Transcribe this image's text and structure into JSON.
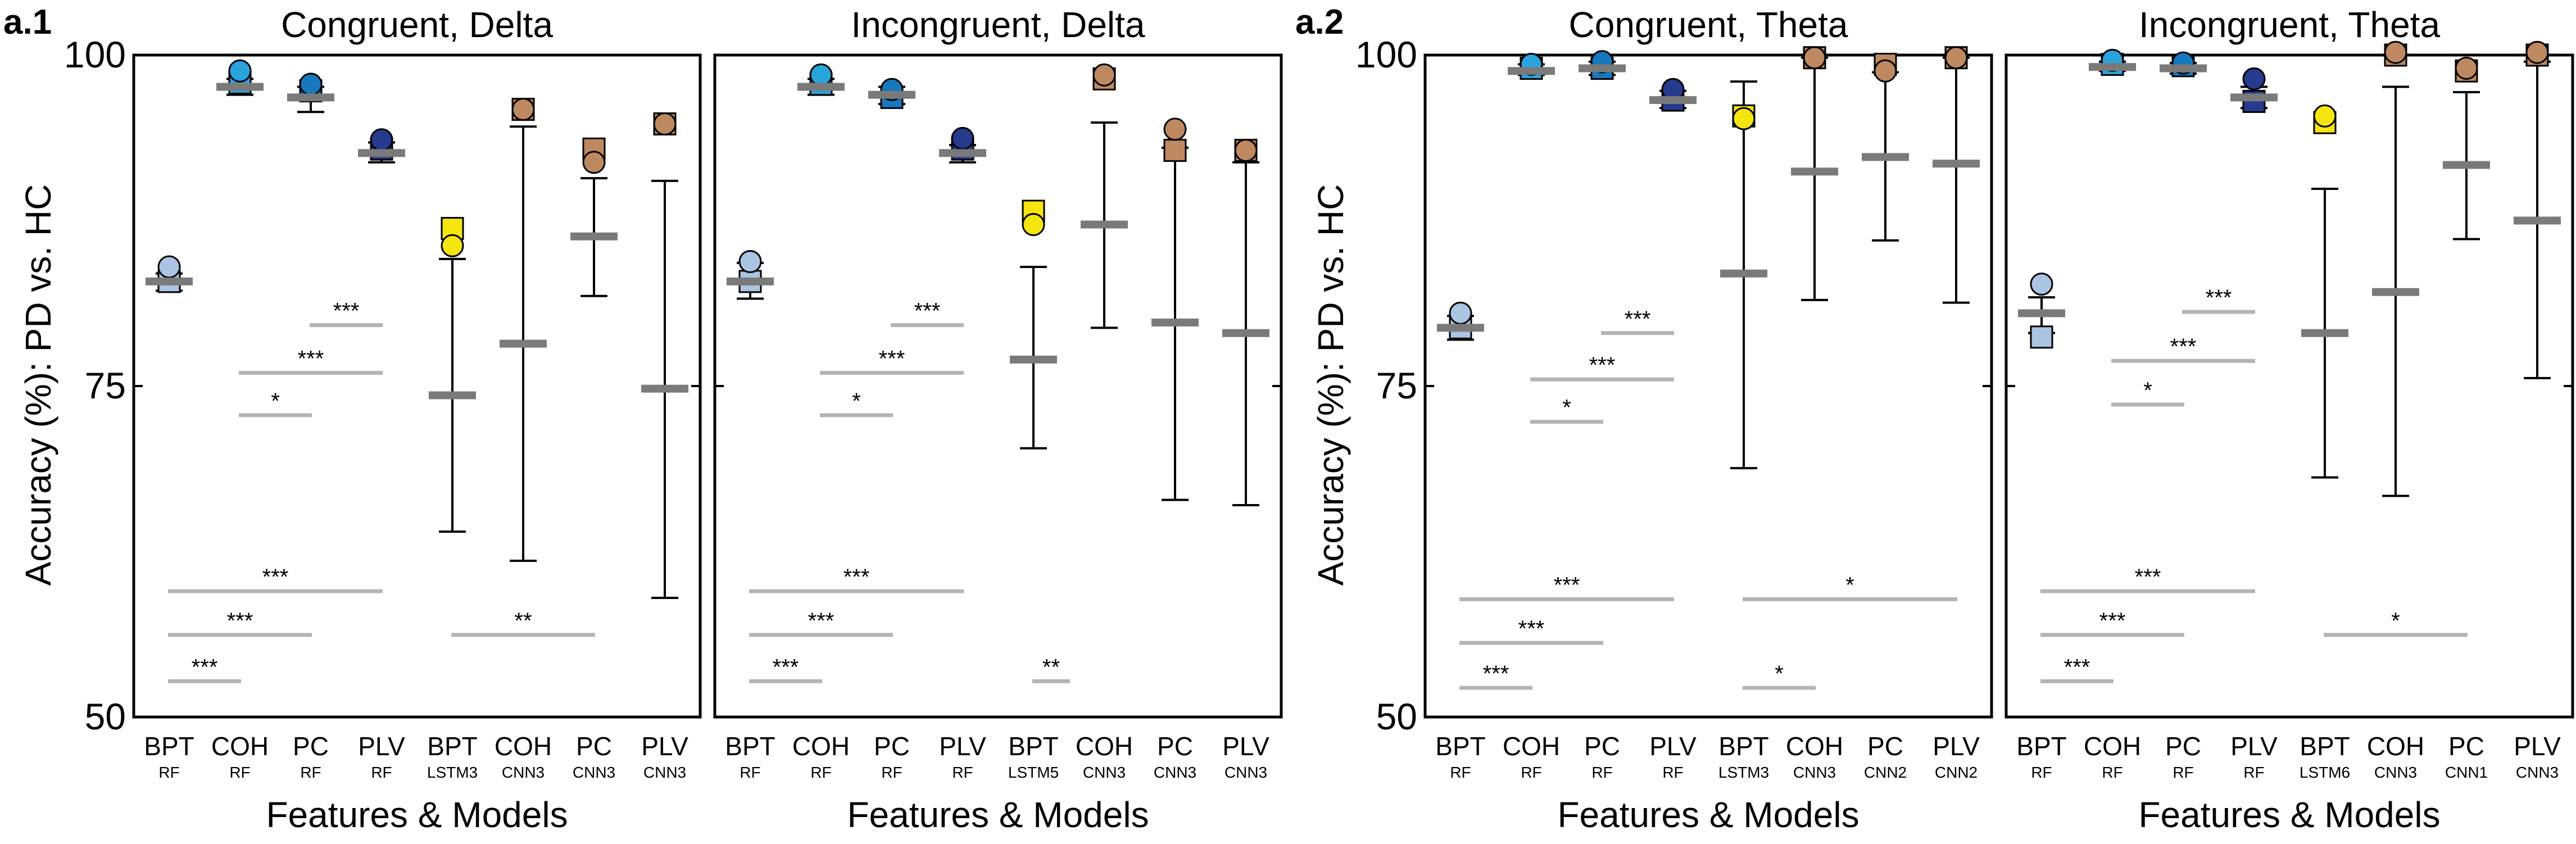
{
  "figure": {
    "section_labels": [
      "a.1",
      "a.2"
    ],
    "ylabel": "Accuracy (%): PD vs. HC",
    "xlabel": "Features & Models"
  },
  "colors": {
    "BPT": "#aac4e2",
    "COH": "#29a3dc",
    "PC": "#1678bd",
    "PLV": "#263a8e",
    "LSTM": "#f5e50f",
    "CNN": "#be8961",
    "CNN_dark": "#8a5a36",
    "mean_bar": "#7a7a7a",
    "sig_line": "#b4b4b4",
    "frame": "#000000"
  },
  "chart_data": [
    {
      "type": "scatter",
      "title": "Congruent, Delta",
      "xlabel": "Features & Models",
      "ylabel": "Accuracy (%): PD vs. HC",
      "ylim": [
        50,
        100
      ],
      "yticks": [
        50,
        75,
        100
      ],
      "categories": [
        {
          "feature": "BPT",
          "model": "RF"
        },
        {
          "feature": "COH",
          "model": "RF"
        },
        {
          "feature": "PC",
          "model": "RF"
        },
        {
          "feature": "PLV",
          "model": "RF"
        },
        {
          "feature": "BPT",
          "model": "LSTM3"
        },
        {
          "feature": "COH",
          "model": "CNN3"
        },
        {
          "feature": "PC",
          "model": "CNN3"
        },
        {
          "feature": "PLV",
          "model": "CNN3"
        }
      ],
      "series": [
        {
          "name": "mean",
          "values": [
            82.9,
            97.6,
            96.8,
            92.6,
            74.3,
            78.2,
            86.3,
            74.8
          ]
        },
        {
          "name": "error_low",
          "values": [
            82.2,
            97.0,
            95.7,
            91.9,
            64.0,
            61.8,
            81.8,
            59.0
          ]
        },
        {
          "name": "error_high",
          "values": [
            83.5,
            98.2,
            97.6,
            93.4,
            84.6,
            94.6,
            90.7,
            90.5
          ]
        },
        {
          "name": "circle",
          "values": [
            84.0,
            98.8,
            97.8,
            93.6,
            85.6,
            95.9,
            91.9,
            94.8
          ]
        },
        {
          "name": "square",
          "values": [
            82.9,
            97.9,
            97.3,
            92.9,
            86.9,
            95.9,
            92.9,
            94.8
          ]
        }
      ],
      "significance": [
        {
          "from": 2,
          "to": 3,
          "label": "***",
          "y": 79.6
        },
        {
          "from": 1,
          "to": 3,
          "label": "***",
          "y": 76.0
        },
        {
          "from": 1,
          "to": 2,
          "label": "*",
          "y": 72.8
        },
        {
          "from": 0,
          "to": 3,
          "label": "***",
          "y": 59.5
        },
        {
          "from": 0,
          "to": 2,
          "label": "***",
          "y": 56.2
        },
        {
          "from": 0,
          "to": 1,
          "label": "***",
          "y": 52.7
        },
        {
          "from": 4,
          "to": 6,
          "label": "**",
          "y": 56.2
        }
      ]
    },
    {
      "type": "scatter",
      "title": "Incongruent, Delta",
      "xlabel": "Features & Models",
      "ylabel": "Accuracy (%): PD vs. HC",
      "ylim": [
        50,
        100
      ],
      "yticks": [
        50,
        75,
        100
      ],
      "categories": [
        {
          "feature": "BPT",
          "model": "RF"
        },
        {
          "feature": "COH",
          "model": "RF"
        },
        {
          "feature": "PC",
          "model": "RF"
        },
        {
          "feature": "PLV",
          "model": "RF"
        },
        {
          "feature": "BPT",
          "model": "LSTM5"
        },
        {
          "feature": "COH",
          "model": "CNN3"
        },
        {
          "feature": "PC",
          "model": "CNN3"
        },
        {
          "feature": "PLV",
          "model": "CNN3"
        }
      ],
      "series": [
        {
          "name": "mean",
          "values": [
            82.9,
            97.6,
            97.0,
            92.6,
            77.0,
            87.2,
            79.8,
            79.0
          ]
        },
        {
          "name": "error_low",
          "values": [
            81.6,
            97.0,
            96.3,
            91.9,
            70.3,
            79.4,
            66.4,
            66.0
          ]
        },
        {
          "name": "error_high",
          "values": [
            84.3,
            98.2,
            97.6,
            93.2,
            84.0,
            94.9,
            93.0,
            91.9
          ]
        },
        {
          "name": "circle",
          "values": [
            84.4,
            98.5,
            97.4,
            93.7,
            87.2,
            98.5,
            94.4,
            92.8
          ]
        },
        {
          "name": "square",
          "values": [
            82.9,
            97.8,
            96.8,
            92.9,
            88.2,
            98.2,
            92.8,
            92.8
          ]
        }
      ],
      "significance": [
        {
          "from": 2,
          "to": 3,
          "label": "***",
          "y": 79.6
        },
        {
          "from": 1,
          "to": 3,
          "label": "***",
          "y": 76.0
        },
        {
          "from": 1,
          "to": 2,
          "label": "*",
          "y": 72.8
        },
        {
          "from": 0,
          "to": 3,
          "label": "***",
          "y": 59.5
        },
        {
          "from": 0,
          "to": 2,
          "label": "***",
          "y": 56.2
        },
        {
          "from": 0,
          "to": 1,
          "label": "***",
          "y": 52.7
        },
        {
          "from": 4,
          "to": 4.5,
          "label": "**",
          "y": 52.7
        }
      ]
    },
    {
      "type": "scatter",
      "title": "Congruent, Theta",
      "xlabel": "Features & Models",
      "ylabel": "Accuracy (%): PD vs. HC",
      "ylim": [
        50,
        100
      ],
      "yticks": [
        50,
        75,
        100
      ],
      "categories": [
        {
          "feature": "BPT",
          "model": "RF"
        },
        {
          "feature": "COH",
          "model": "RF"
        },
        {
          "feature": "PC",
          "model": "RF"
        },
        {
          "feature": "PLV",
          "model": "RF"
        },
        {
          "feature": "BPT",
          "model": "LSTM3"
        },
        {
          "feature": "COH",
          "model": "CNN3"
        },
        {
          "feature": "PC",
          "model": "CNN2"
        },
        {
          "feature": "PLV",
          "model": "CNN2"
        }
      ],
      "series": [
        {
          "name": "mean",
          "values": [
            79.4,
            98.8,
            99.0,
            96.6,
            83.5,
            91.2,
            92.3,
            91.8
          ]
        },
        {
          "name": "error_low",
          "values": [
            78.5,
            98.5,
            98.5,
            96.0,
            68.8,
            81.5,
            86.0,
            81.3
          ]
        },
        {
          "name": "error_high",
          "values": [
            80.3,
            99.3,
            99.5,
            97.3,
            98.0,
            99.8,
            98.7,
            99.8
          ]
        },
        {
          "name": "circle",
          "values": [
            80.5,
            99.3,
            99.5,
            97.4,
            95.2,
            99.8,
            98.8,
            99.8
          ]
        },
        {
          "name": "square",
          "values": [
            79.4,
            99.0,
            99.0,
            96.6,
            95.4,
            99.8,
            99.3,
            99.8
          ]
        }
      ],
      "significance": [
        {
          "from": 2,
          "to": 3,
          "label": "***",
          "y": 79.0
        },
        {
          "from": 1,
          "to": 3,
          "label": "***",
          "y": 75.5
        },
        {
          "from": 1,
          "to": 2,
          "label": "*",
          "y": 72.3
        },
        {
          "from": 0,
          "to": 3,
          "label": "***",
          "y": 58.9
        },
        {
          "from": 0,
          "to": 2,
          "label": "***",
          "y": 55.6
        },
        {
          "from": 0,
          "to": 1,
          "label": "***",
          "y": 52.2
        },
        {
          "from": 4,
          "to": 7,
          "label": "*",
          "y": 58.9
        },
        {
          "from": 4,
          "to": 5,
          "label": "*",
          "y": 52.2
        }
      ]
    },
    {
      "type": "scatter",
      "title": "Incongruent, Theta",
      "xlabel": "Features & Models",
      "ylabel": "Accuracy (%): PD vs. HC",
      "ylim": [
        50,
        100
      ],
      "yticks": [
        50,
        75,
        100
      ],
      "categories": [
        {
          "feature": "BPT",
          "model": "RF"
        },
        {
          "feature": "COH",
          "model": "RF"
        },
        {
          "feature": "PC",
          "model": "RF"
        },
        {
          "feature": "PLV",
          "model": "RF"
        },
        {
          "feature": "BPT",
          "model": "LSTM6"
        },
        {
          "feature": "COH",
          "model": "CNN3"
        },
        {
          "feature": "PC",
          "model": "CNN1"
        },
        {
          "feature": "PLV",
          "model": "CNN3"
        }
      ],
      "series": [
        {
          "name": "mean",
          "values": [
            80.5,
            99.1,
            99.0,
            96.8,
            79.0,
            82.1,
            91.7,
            87.5
          ]
        },
        {
          "name": "error_low",
          "values": [
            79.0,
            98.8,
            98.6,
            96.0,
            68.1,
            66.7,
            86.1,
            75.6
          ]
        },
        {
          "name": "error_high",
          "values": [
            81.7,
            99.5,
            99.4,
            97.6,
            89.9,
            97.6,
            97.2,
            99.5
          ]
        },
        {
          "name": "circle",
          "values": [
            82.7,
            99.6,
            99.4,
            98.2,
            95.4,
            100.2,
            99.0,
            100.2
          ]
        },
        {
          "name": "square",
          "values": [
            78.7,
            99.3,
            99.2,
            96.5,
            94.9,
            100.0,
            98.8,
            100.0
          ]
        }
      ],
      "significance": [
        {
          "from": 2,
          "to": 3,
          "label": "***",
          "y": 80.6
        },
        {
          "from": 1,
          "to": 3,
          "label": "***",
          "y": 76.9
        },
        {
          "from": 1,
          "to": 2,
          "label": "*",
          "y": 73.6
        },
        {
          "from": 0,
          "to": 3,
          "label": "***",
          "y": 59.5
        },
        {
          "from": 0,
          "to": 2,
          "label": "***",
          "y": 56.2
        },
        {
          "from": 0,
          "to": 1,
          "label": "***",
          "y": 52.7
        },
        {
          "from": 4,
          "to": 6,
          "label": "*",
          "y": 56.2
        }
      ]
    }
  ]
}
